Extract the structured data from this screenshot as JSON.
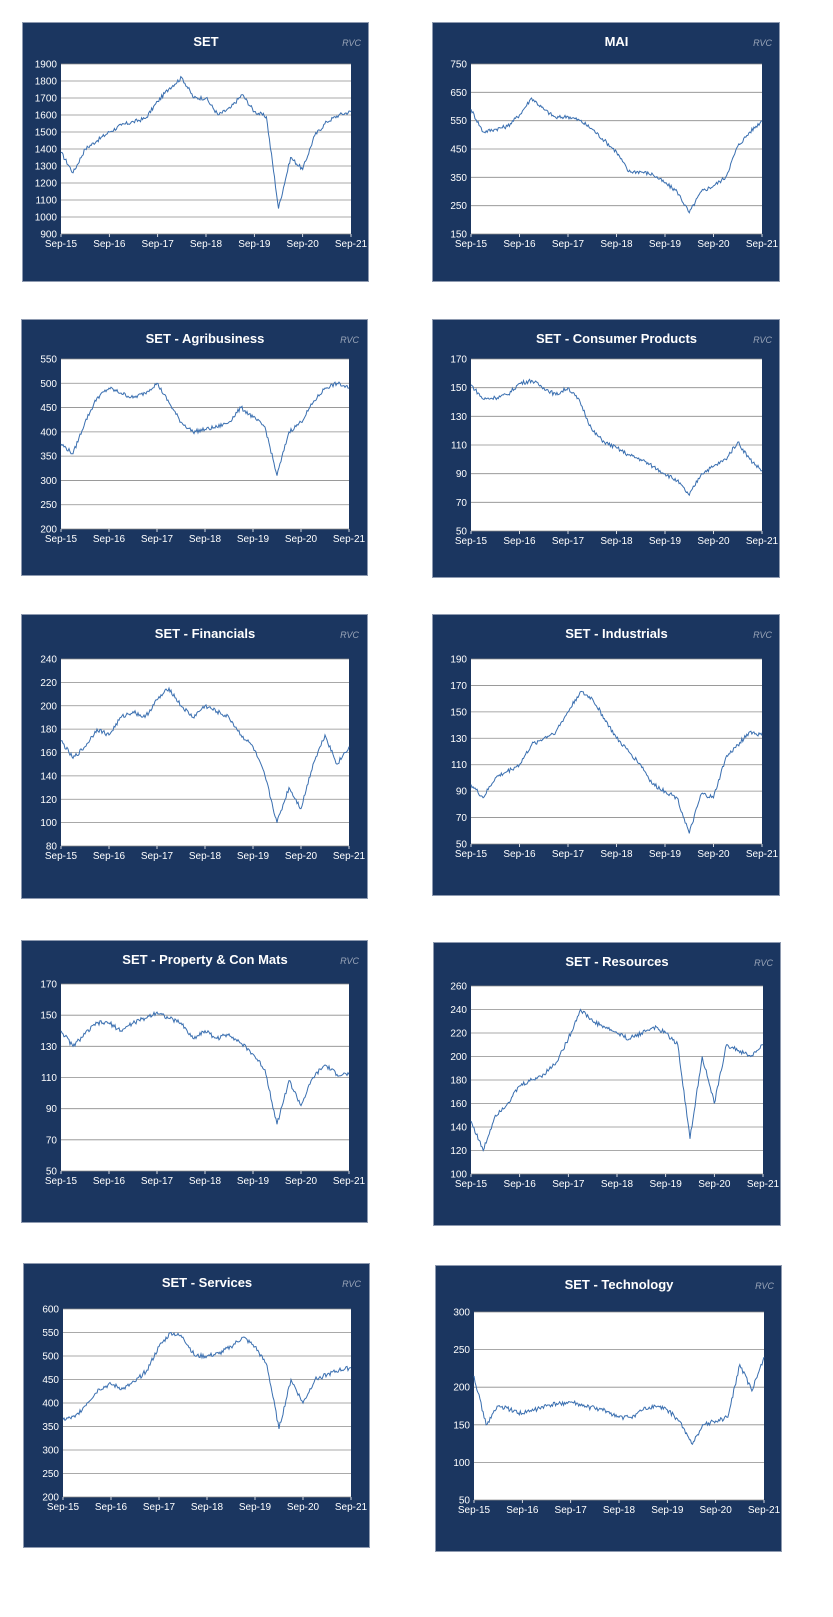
{
  "colors": {
    "panel_bg": "#1b3660",
    "plot_bg": "#ffffff",
    "line": "#3a6fb0",
    "grid": "#8c8c8c",
    "text": "#ffffff",
    "watermark": "#9aa5b8"
  },
  "watermark": "RVC",
  "chart_data": [
    {
      "type": "line",
      "title": "SET",
      "grid": true,
      "x": [
        "Sep-15",
        "Dec-15",
        "Mar-16",
        "Jun-16",
        "Sep-16",
        "Dec-16",
        "Mar-17",
        "Jun-17",
        "Sep-17",
        "Dec-17",
        "Mar-18",
        "Jun-18",
        "Sep-18",
        "Dec-18",
        "Mar-19",
        "Jun-19",
        "Sep-19",
        "Dec-19",
        "Mar-20",
        "Jun-20",
        "Sep-20",
        "Dec-20",
        "Mar-21",
        "Jun-21",
        "Sep-21"
      ],
      "series": [
        {
          "values": [
            1380,
            1260,
            1400,
            1450,
            1500,
            1540,
            1560,
            1580,
            1680,
            1760,
            1820,
            1700,
            1700,
            1600,
            1640,
            1720,
            1620,
            1590,
            1050,
            1350,
            1280,
            1480,
            1560,
            1600,
            1620
          ]
        }
      ],
      "ylim": [
        900,
        1900
      ],
      "yticks": [
        900,
        1000,
        1100,
        1200,
        1300,
        1400,
        1500,
        1600,
        1700,
        1800,
        1900
      ],
      "xticks": [
        "Sep-15",
        "Sep-16",
        "Sep-17",
        "Sep-18",
        "Sep-19",
        "Sep-20",
        "Sep-21"
      ]
    },
    {
      "type": "line",
      "title": "MAI",
      "grid": true,
      "x": [
        "Sep-15",
        "Dec-15",
        "Mar-16",
        "Jun-16",
        "Sep-16",
        "Dec-16",
        "Mar-17",
        "Jun-17",
        "Sep-17",
        "Dec-17",
        "Mar-18",
        "Jun-18",
        "Sep-18",
        "Dec-18",
        "Mar-19",
        "Jun-19",
        "Sep-19",
        "Dec-19",
        "Mar-20",
        "Jun-20",
        "Sep-20",
        "Dec-20",
        "Mar-21",
        "Jun-21",
        "Sep-21"
      ],
      "series": [
        {
          "values": [
            590,
            510,
            520,
            530,
            570,
            630,
            590,
            560,
            565,
            550,
            520,
            480,
            440,
            370,
            370,
            360,
            330,
            300,
            225,
            300,
            320,
            350,
            460,
            510,
            550
          ]
        }
      ],
      "ylim": [
        150,
        750
      ],
      "yticks": [
        150,
        250,
        350,
        450,
        550,
        650,
        750
      ],
      "xticks": [
        "Sep-15",
        "Sep-16",
        "Sep-17",
        "Sep-18",
        "Sep-19",
        "Sep-20",
        "Sep-21"
      ]
    },
    {
      "type": "line",
      "title": "SET - Agribusiness",
      "grid": true,
      "x": [
        "Sep-15",
        "Dec-15",
        "Mar-16",
        "Jun-16",
        "Sep-16",
        "Dec-16",
        "Mar-17",
        "Jun-17",
        "Sep-17",
        "Dec-17",
        "Mar-18",
        "Jun-18",
        "Sep-18",
        "Dec-18",
        "Mar-19",
        "Jun-19",
        "Sep-19",
        "Dec-19",
        "Mar-20",
        "Jun-20",
        "Sep-20",
        "Dec-20",
        "Mar-21",
        "Jun-21",
        "Sep-21"
      ],
      "series": [
        {
          "values": [
            375,
            355,
            420,
            470,
            490,
            480,
            470,
            480,
            500,
            460,
            420,
            400,
            405,
            410,
            420,
            450,
            430,
            410,
            310,
            400,
            420,
            460,
            490,
            500,
            490
          ]
        }
      ],
      "ylim": [
        200,
        550
      ],
      "yticks": [
        200,
        250,
        300,
        350,
        400,
        450,
        500,
        550
      ],
      "xticks": [
        "Sep-15",
        "Sep-16",
        "Sep-17",
        "Sep-18",
        "Sep-19",
        "Sep-20",
        "Sep-21"
      ]
    },
    {
      "type": "line",
      "title": "SET - Consumer Products",
      "grid": true,
      "x": [
        "Sep-15",
        "Dec-15",
        "Mar-16",
        "Jun-16",
        "Sep-16",
        "Dec-16",
        "Mar-17",
        "Jun-17",
        "Sep-17",
        "Dec-17",
        "Mar-18",
        "Jun-18",
        "Sep-18",
        "Dec-18",
        "Mar-19",
        "Jun-19",
        "Sep-19",
        "Dec-19",
        "Mar-20",
        "Jun-20",
        "Sep-20",
        "Dec-20",
        "Mar-21",
        "Jun-21",
        "Sep-21"
      ],
      "series": [
        {
          "values": [
            152,
            142,
            143,
            145,
            153,
            155,
            150,
            145,
            150,
            140,
            120,
            112,
            108,
            103,
            100,
            95,
            90,
            85,
            75,
            90,
            95,
            100,
            112,
            100,
            92
          ]
        }
      ],
      "ylim": [
        50,
        170
      ],
      "yticks": [
        50,
        70,
        90,
        110,
        130,
        150,
        170
      ],
      "xticks": [
        "Sep-15",
        "Sep-16",
        "Sep-17",
        "Sep-18",
        "Sep-19",
        "Sep-20",
        "Sep-21"
      ]
    },
    {
      "type": "line",
      "title": "SET - Financials",
      "grid": true,
      "x": [
        "Sep-15",
        "Dec-15",
        "Mar-16",
        "Jun-16",
        "Sep-16",
        "Dec-16",
        "Mar-17",
        "Jun-17",
        "Sep-17",
        "Dec-17",
        "Mar-18",
        "Jun-18",
        "Sep-18",
        "Dec-18",
        "Mar-19",
        "Jun-19",
        "Sep-19",
        "Dec-19",
        "Mar-20",
        "Jun-20",
        "Sep-20",
        "Dec-20",
        "Mar-21",
        "Jun-21",
        "Sep-21"
      ],
      "series": [
        {
          "values": [
            170,
            155,
            165,
            180,
            175,
            190,
            195,
            190,
            205,
            215,
            200,
            190,
            200,
            195,
            190,
            175,
            165,
            140,
            100,
            130,
            112,
            150,
            175,
            150,
            165
          ]
        }
      ],
      "ylim": [
        80,
        240
      ],
      "yticks": [
        80,
        100,
        120,
        140,
        160,
        180,
        200,
        220,
        240
      ],
      "xticks": [
        "Sep-15",
        "Sep-16",
        "Sep-17",
        "Sep-18",
        "Sep-19",
        "Sep-20",
        "Sep-21"
      ]
    },
    {
      "type": "line",
      "title": "SET - Industrials",
      "grid": true,
      "x": [
        "Sep-15",
        "Dec-15",
        "Mar-16",
        "Jun-16",
        "Sep-16",
        "Dec-16",
        "Mar-17",
        "Jun-17",
        "Sep-17",
        "Dec-17",
        "Mar-18",
        "Jun-18",
        "Sep-18",
        "Dec-18",
        "Mar-19",
        "Jun-19",
        "Sep-19",
        "Dec-19",
        "Mar-20",
        "Jun-20",
        "Sep-20",
        "Dec-20",
        "Mar-21",
        "Jun-21",
        "Sep-21"
      ],
      "series": [
        {
          "values": [
            95,
            85,
            100,
            105,
            110,
            125,
            130,
            135,
            150,
            165,
            160,
            145,
            130,
            120,
            110,
            95,
            90,
            85,
            58,
            88,
            85,
            115,
            125,
            135,
            132
          ]
        }
      ],
      "ylim": [
        50,
        190
      ],
      "yticks": [
        50,
        70,
        90,
        110,
        130,
        150,
        170,
        190
      ],
      "xticks": [
        "Sep-15",
        "Sep-16",
        "Sep-17",
        "Sep-18",
        "Sep-19",
        "Sep-20",
        "Sep-21"
      ]
    },
    {
      "type": "line",
      "title": "SET - Property & Con Mats",
      "grid": true,
      "x": [
        "Sep-15",
        "Dec-15",
        "Mar-16",
        "Jun-16",
        "Sep-16",
        "Dec-16",
        "Mar-17",
        "Jun-17",
        "Sep-17",
        "Dec-17",
        "Mar-18",
        "Jun-18",
        "Sep-18",
        "Dec-18",
        "Mar-19",
        "Jun-19",
        "Sep-19",
        "Dec-19",
        "Mar-20",
        "Jun-20",
        "Sep-20",
        "Dec-20",
        "Mar-21",
        "Jun-21",
        "Sep-21"
      ],
      "series": [
        {
          "values": [
            140,
            130,
            138,
            145,
            145,
            140,
            145,
            148,
            152,
            148,
            145,
            135,
            140,
            135,
            138,
            132,
            125,
            115,
            80,
            108,
            92,
            110,
            118,
            112,
            112
          ]
        }
      ],
      "ylim": [
        50,
        170
      ],
      "yticks": [
        50,
        70,
        90,
        110,
        130,
        150,
        170
      ],
      "xticks": [
        "Sep-15",
        "Sep-16",
        "Sep-17",
        "Sep-18",
        "Sep-19",
        "Sep-20",
        "Sep-21"
      ]
    },
    {
      "type": "line",
      "title": "SET - Resources",
      "grid": true,
      "x": [
        "Sep-15",
        "Dec-15",
        "Mar-16",
        "Jun-16",
        "Sep-16",
        "Dec-16",
        "Mar-17",
        "Jun-17",
        "Sep-17",
        "Dec-17",
        "Mar-18",
        "Jun-18",
        "Sep-18",
        "Dec-18",
        "Mar-19",
        "Jun-19",
        "Sep-19",
        "Dec-19",
        "Mar-20",
        "Jun-20",
        "Sep-20",
        "Dec-20",
        "Mar-21",
        "Jun-21",
        "Sep-21"
      ],
      "series": [
        {
          "values": [
            145,
            120,
            150,
            160,
            175,
            180,
            185,
            195,
            215,
            240,
            230,
            225,
            220,
            215,
            220,
            225,
            220,
            210,
            130,
            200,
            160,
            210,
            205,
            200,
            210
          ]
        }
      ],
      "ylim": [
        100,
        260
      ],
      "yticks": [
        100,
        120,
        140,
        160,
        180,
        200,
        220,
        240,
        260
      ],
      "xticks": [
        "Sep-15",
        "Sep-16",
        "Sep-17",
        "Sep-18",
        "Sep-19",
        "Sep-20",
        "Sep-21"
      ]
    },
    {
      "type": "line",
      "title": "SET - Services",
      "grid": true,
      "x": [
        "Sep-15",
        "Dec-15",
        "Mar-16",
        "Jun-16",
        "Sep-16",
        "Dec-16",
        "Mar-17",
        "Jun-17",
        "Sep-17",
        "Dec-17",
        "Mar-18",
        "Jun-18",
        "Sep-18",
        "Dec-18",
        "Mar-19",
        "Jun-19",
        "Sep-19",
        "Dec-19",
        "Mar-20",
        "Jun-20",
        "Sep-20",
        "Dec-20",
        "Mar-21",
        "Jun-21",
        "Sep-21"
      ],
      "series": [
        {
          "values": [
            365,
            370,
            400,
            430,
            440,
            430,
            445,
            470,
            520,
            550,
            540,
            500,
            500,
            505,
            520,
            540,
            520,
            480,
            345,
            450,
            400,
            450,
            460,
            470,
            475
          ]
        }
      ],
      "ylim": [
        200,
        600
      ],
      "yticks": [
        200,
        250,
        300,
        350,
        400,
        450,
        500,
        550,
        600
      ],
      "xticks": [
        "Sep-15",
        "Sep-16",
        "Sep-17",
        "Sep-18",
        "Sep-19",
        "Sep-20",
        "Sep-21"
      ]
    },
    {
      "type": "line",
      "title": "SET - Technology",
      "grid": true,
      "x": [
        "Sep-15",
        "Dec-15",
        "Mar-16",
        "Jun-16",
        "Sep-16",
        "Dec-16",
        "Mar-17",
        "Jun-17",
        "Sep-17",
        "Dec-17",
        "Mar-18",
        "Jun-18",
        "Sep-18",
        "Dec-18",
        "Mar-19",
        "Jun-19",
        "Sep-19",
        "Dec-19",
        "Mar-20",
        "Jun-20",
        "Sep-20",
        "Dec-20",
        "Mar-21",
        "Jun-21",
        "Sep-21"
      ],
      "series": [
        {
          "values": [
            215,
            150,
            175,
            170,
            165,
            170,
            175,
            178,
            180,
            175,
            172,
            168,
            160,
            160,
            170,
            175,
            170,
            155,
            125,
            150,
            155,
            160,
            230,
            195,
            240
          ]
        }
      ],
      "ylim": [
        50,
        300
      ],
      "yticks": [
        50,
        100,
        150,
        200,
        250,
        300
      ],
      "xticks": [
        "Sep-15",
        "Sep-16",
        "Sep-17",
        "Sep-18",
        "Sep-19",
        "Sep-20",
        "Sep-21"
      ]
    }
  ]
}
